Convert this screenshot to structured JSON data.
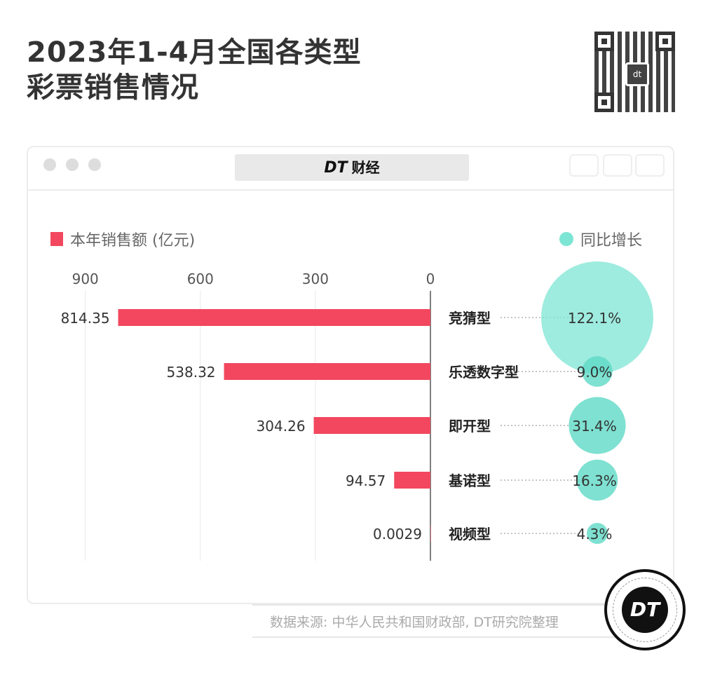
{
  "title_line1": "2023年1-4月全国各类型",
  "title_line2": "彩票销售情况",
  "window": {
    "address_logo": "DT",
    "address_text": "财经"
  },
  "source": "数据来源: 中华人民共和国财政部, DT研究院整理",
  "badge": "DT",
  "colors": {
    "bar": "#f2475e",
    "bubble": "#7de5d4",
    "bubble_small": "#5ed9c6"
  },
  "chart_data": {
    "type": "bar",
    "orientation": "horizontal-left",
    "categories": [
      "竞猜型",
      "乐透数字型",
      "即开型",
      "基诺型",
      "视频型"
    ],
    "series": [
      {
        "name": "本年销售额 (亿元)",
        "type": "bar",
        "values": [
          814.35,
          538.32,
          304.26,
          94.57,
          0.0029
        ],
        "labels": [
          "814.35",
          "538.32",
          "304.26",
          "94.57",
          "0.0029"
        ]
      },
      {
        "name": "同比增长",
        "type": "bubble",
        "values": [
          122.1,
          9.0,
          31.4,
          16.3,
          4.3
        ],
        "labels": [
          "122.1%",
          "9.0%",
          "31.4%",
          "16.3%",
          "4.3%"
        ]
      }
    ],
    "xlim": [
      0,
      900
    ],
    "xticks": [
      "900",
      "600",
      "300",
      "0"
    ],
    "xtick_values": [
      900,
      600,
      300,
      0
    ],
    "legend": "top",
    "grid": true
  }
}
